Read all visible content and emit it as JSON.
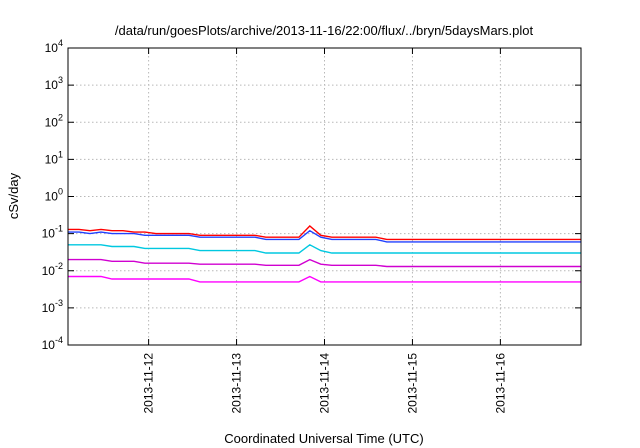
{
  "chart_data": {
    "type": "line",
    "title": "/data/run/goesPlots/archive/2013-11-16/22:00/flux/../bryn/5daysMars.plot",
    "xlabel": "Coordinated Universal Time (UTC)",
    "ylabel": "cSv/day",
    "y_scale": "log",
    "ylim": [
      0.0001,
      10000
    ],
    "y_ticks": [
      {
        "value": 0.0001,
        "base": "10",
        "exp": "-4"
      },
      {
        "value": 0.001,
        "base": "10",
        "exp": "-3"
      },
      {
        "value": 0.01,
        "base": "10",
        "exp": "-2"
      },
      {
        "value": 0.1,
        "base": "10",
        "exp": "-1"
      },
      {
        "value": 1,
        "base": "10",
        "exp": "0"
      },
      {
        "value": 10,
        "base": "10",
        "exp": "1"
      },
      {
        "value": 100,
        "base": "10",
        "exp": "2"
      },
      {
        "value": 1000,
        "base": "10",
        "exp": "3"
      },
      {
        "value": 10000,
        "base": "10",
        "exp": "4"
      }
    ],
    "xlim": [
      "2013-11-11T02:00",
      "2013-11-16T22:00"
    ],
    "x_ticks": [
      {
        "value": "2013-11-12T00:00",
        "label": "2013-11-12"
      },
      {
        "value": "2013-11-13T00:00",
        "label": "2013-11-13"
      },
      {
        "value": "2013-11-14T00:00",
        "label": "2013-11-14"
      },
      {
        "value": "2013-11-15T00:00",
        "label": "2013-11-15"
      },
      {
        "value": "2013-11-16T00:00",
        "label": "2013-11-16"
      }
    ],
    "grid": true,
    "x": [
      "2013-11-11T02:00",
      "2013-11-11T05:00",
      "2013-11-11T08:00",
      "2013-11-11T11:00",
      "2013-11-11T14:00",
      "2013-11-11T17:00",
      "2013-11-11T20:00",
      "2013-11-11T23:00",
      "2013-11-12T02:00",
      "2013-11-12T05:00",
      "2013-11-12T08:00",
      "2013-11-12T11:00",
      "2013-11-12T14:00",
      "2013-11-12T17:00",
      "2013-11-12T20:00",
      "2013-11-12T23:00",
      "2013-11-13T02:00",
      "2013-11-13T05:00",
      "2013-11-13T08:00",
      "2013-11-13T11:00",
      "2013-11-13T14:00",
      "2013-11-13T17:00",
      "2013-11-13T20:00",
      "2013-11-13T23:00",
      "2013-11-14T02:00",
      "2013-11-14T05:00",
      "2013-11-14T08:00",
      "2013-11-14T11:00",
      "2013-11-14T14:00",
      "2013-11-14T17:00",
      "2013-11-14T20:00",
      "2013-11-14T23:00",
      "2013-11-15T02:00",
      "2013-11-15T05:00",
      "2013-11-15T08:00",
      "2013-11-15T11:00",
      "2013-11-15T14:00",
      "2013-11-15T17:00",
      "2013-11-15T20:00",
      "2013-11-15T23:00",
      "2013-11-16T02:00",
      "2013-11-16T05:00",
      "2013-11-16T08:00",
      "2013-11-16T11:00",
      "2013-11-16T14:00",
      "2013-11-16T17:00",
      "2013-11-16T20:00",
      "2013-11-16T22:00"
    ],
    "series": [
      {
        "color": "#ff0000",
        "values": [
          0.13,
          0.13,
          0.12,
          0.13,
          0.12,
          0.12,
          0.11,
          0.11,
          0.1,
          0.1,
          0.1,
          0.1,
          0.09,
          0.09,
          0.09,
          0.09,
          0.09,
          0.09,
          0.08,
          0.08,
          0.08,
          0.08,
          0.16,
          0.09,
          0.08,
          0.08,
          0.08,
          0.08,
          0.08,
          0.07,
          0.07,
          0.07,
          0.07,
          0.07,
          0.07,
          0.07,
          0.07,
          0.07,
          0.07,
          0.07,
          0.07,
          0.07,
          0.07,
          0.07,
          0.07,
          0.07,
          0.07,
          0.07
        ]
      },
      {
        "color": "#2040ff",
        "values": [
          0.11,
          0.11,
          0.1,
          0.11,
          0.1,
          0.1,
          0.1,
          0.09,
          0.09,
          0.09,
          0.09,
          0.09,
          0.08,
          0.08,
          0.08,
          0.08,
          0.08,
          0.08,
          0.07,
          0.07,
          0.07,
          0.07,
          0.12,
          0.08,
          0.07,
          0.07,
          0.07,
          0.07,
          0.07,
          0.06,
          0.06,
          0.06,
          0.06,
          0.06,
          0.06,
          0.06,
          0.06,
          0.06,
          0.06,
          0.06,
          0.06,
          0.06,
          0.06,
          0.06,
          0.06,
          0.06,
          0.06,
          0.06
        ]
      },
      {
        "color": "#00c8e0",
        "values": [
          0.05,
          0.05,
          0.05,
          0.05,
          0.045,
          0.045,
          0.045,
          0.04,
          0.04,
          0.04,
          0.04,
          0.04,
          0.035,
          0.035,
          0.035,
          0.035,
          0.035,
          0.035,
          0.03,
          0.03,
          0.03,
          0.03,
          0.05,
          0.035,
          0.03,
          0.03,
          0.03,
          0.03,
          0.03,
          0.03,
          0.03,
          0.03,
          0.03,
          0.03,
          0.03,
          0.03,
          0.03,
          0.03,
          0.03,
          0.03,
          0.03,
          0.03,
          0.03,
          0.03,
          0.03,
          0.03,
          0.03,
          0.03
        ]
      },
      {
        "color": "#d000d0",
        "values": [
          0.02,
          0.02,
          0.02,
          0.02,
          0.018,
          0.018,
          0.018,
          0.016,
          0.016,
          0.016,
          0.016,
          0.016,
          0.015,
          0.015,
          0.015,
          0.015,
          0.015,
          0.015,
          0.014,
          0.014,
          0.014,
          0.014,
          0.02,
          0.015,
          0.014,
          0.014,
          0.014,
          0.014,
          0.014,
          0.013,
          0.013,
          0.013,
          0.013,
          0.013,
          0.013,
          0.013,
          0.013,
          0.013,
          0.013,
          0.013,
          0.013,
          0.013,
          0.013,
          0.013,
          0.013,
          0.013,
          0.013,
          0.013
        ]
      },
      {
        "color": "#ff00ff",
        "values": [
          0.007,
          0.007,
          0.007,
          0.007,
          0.006,
          0.006,
          0.006,
          0.006,
          0.006,
          0.006,
          0.006,
          0.006,
          0.005,
          0.005,
          0.005,
          0.005,
          0.005,
          0.005,
          0.005,
          0.005,
          0.005,
          0.005,
          0.007,
          0.005,
          0.005,
          0.005,
          0.005,
          0.005,
          0.005,
          0.005,
          0.005,
          0.005,
          0.005,
          0.005,
          0.005,
          0.005,
          0.005,
          0.005,
          0.005,
          0.005,
          0.005,
          0.005,
          0.005,
          0.005,
          0.005,
          0.005,
          0.005,
          0.005
        ]
      }
    ]
  }
}
